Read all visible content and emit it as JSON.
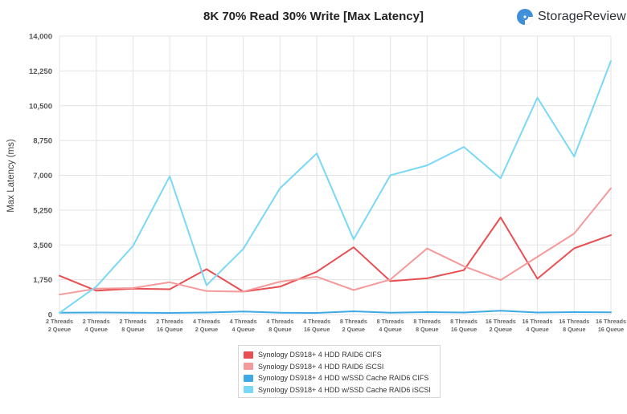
{
  "brand": {
    "name": "StorageReview",
    "logo_icon": "storagereview-logo-icon"
  },
  "chart_data": {
    "type": "line",
    "title": "8K 70% Read 30% Write [Max Latency]",
    "ylabel": "Max Latency (ms)",
    "xlabel": "",
    "ylim": [
      0,
      14000
    ],
    "yticks": [
      "0",
      "1,750",
      "3,500",
      "5,250",
      "7,000",
      "8,750",
      "10,500",
      "12,250",
      "14,000"
    ],
    "ytick_values": [
      0,
      1750,
      3500,
      5250,
      7000,
      8750,
      10500,
      12250,
      14000
    ],
    "grid": true,
    "legend_position": "bottom",
    "categories": [
      [
        "2 Threads",
        "2 Queue"
      ],
      [
        "2 Threads",
        "4 Queue"
      ],
      [
        "2 Threads",
        "8 Queue"
      ],
      [
        "2 Threads",
        "16 Queue"
      ],
      [
        "4 Threads",
        "2 Queue"
      ],
      [
        "4 Threads",
        "4 Queue"
      ],
      [
        "4 Threads",
        "8 Queue"
      ],
      [
        "4 Threads",
        "16 Queue"
      ],
      [
        "8 Threads",
        "2 Queue"
      ],
      [
        "8 Threads",
        "4 Queue"
      ],
      [
        "8 Threads",
        "8 Queue"
      ],
      [
        "8 Threads",
        "16 Queue"
      ],
      [
        "16 Threads",
        "2 Queue"
      ],
      [
        "16 Threads",
        "4 Queue"
      ],
      [
        "16 Threads",
        "8 Queue"
      ],
      [
        "16 Threads",
        "16 Queue"
      ]
    ],
    "series": [
      {
        "name": "Synology DS918+ 4 HDD RAID6 CIFS",
        "color": "#e84f53",
        "values": [
          1950,
          1200,
          1300,
          1270,
          2280,
          1150,
          1400,
          2150,
          3380,
          1680,
          1820,
          2230,
          4880,
          1800,
          3330,
          3990
        ]
      },
      {
        "name": "Synology DS918+ 4 HDD RAID6 iSCSI",
        "color": "#f59a9a",
        "values": [
          1000,
          1300,
          1330,
          1620,
          1180,
          1150,
          1650,
          1900,
          1230,
          1760,
          3320,
          2430,
          1730,
          2900,
          4070,
          6350
        ]
      },
      {
        "name": "Synology DS918+ 4 HDD w/SSD Cache RAID6 CIFS",
        "color": "#3fa9e6",
        "values": [
          90,
          100,
          90,
          80,
          100,
          150,
          90,
          80,
          160,
          90,
          120,
          100,
          190,
          100,
          120,
          110
        ]
      },
      {
        "name": "Synology DS918+ 4 HDD w/SSD Cache RAID6 iSCSI",
        "color": "#7ad8f7",
        "values": [
          80,
          1400,
          3450,
          6950,
          1470,
          3300,
          6350,
          8100,
          3780,
          7000,
          7500,
          8430,
          6850,
          10900,
          7950,
          12750
        ]
      }
    ]
  }
}
